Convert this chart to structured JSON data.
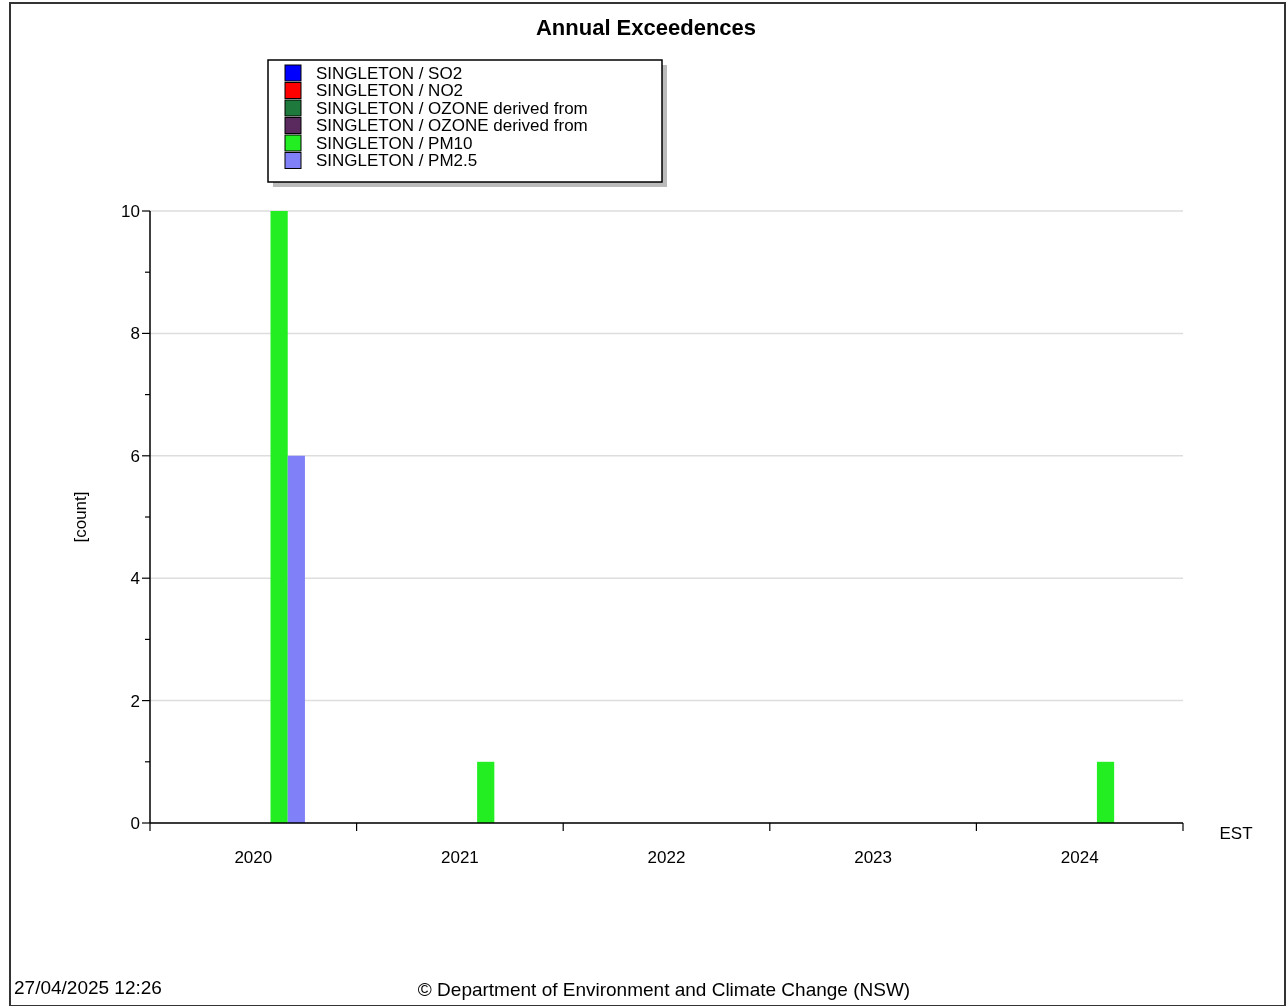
{
  "chart_data": {
    "type": "bar",
    "title": "Annual Exceedences",
    "ylabel": "[count]",
    "xlabel": "EST",
    "categories": [
      "2020",
      "2021",
      "2022",
      "2023",
      "2024"
    ],
    "series": [
      {
        "name": "SINGLETON / SO2",
        "color": "#0000ff",
        "values": [
          0,
          0,
          0,
          0,
          0
        ]
      },
      {
        "name": "SINGLETON / NO2",
        "color": "#ff0000",
        "values": [
          0,
          0,
          0,
          0,
          0
        ]
      },
      {
        "name": "SINGLETON / OZONE derived from",
        "color": "#1e7a3c",
        "values": [
          0,
          0,
          0,
          0,
          0
        ]
      },
      {
        "name": "SINGLETON / OZONE derived from",
        "color": "#5a2a5e",
        "values": [
          0,
          0,
          0,
          0,
          0
        ]
      },
      {
        "name": "SINGLETON / PM10",
        "color": "#22ee22",
        "values": [
          10,
          1,
          0,
          0,
          1
        ]
      },
      {
        "name": "SINGLETON / PM2.5",
        "color": "#8080f8",
        "values": [
          6,
          0,
          0,
          0,
          0
        ]
      }
    ],
    "ylim": [
      0,
      10
    ],
    "yticks": [
      0,
      {
        "value": 1,
        "label": null
      },
      2,
      {
        "value": 3,
        "label": null
      },
      4,
      {
        "value": 5,
        "label": null
      },
      6,
      {
        "value": 7,
        "label": null
      },
      8,
      {
        "value": 9,
        "label": null
      },
      10
    ],
    "grid": "y",
    "legend": "top left",
    "annotations": [
      "27/04/2025 12:26",
      "© Department of Environment and Climate Change (NSW)"
    ]
  }
}
